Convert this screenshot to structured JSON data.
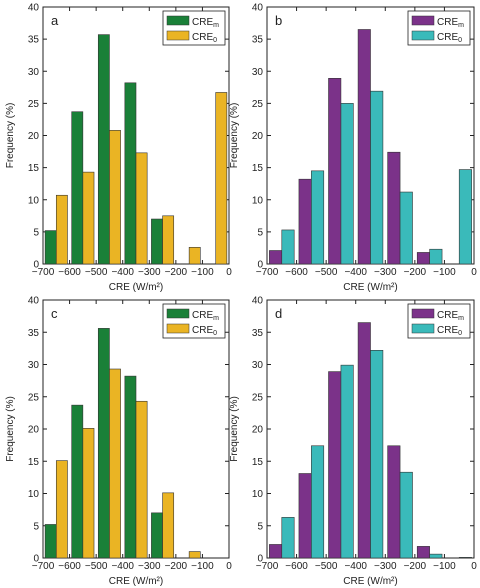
{
  "chart_data": [
    {
      "panel": "a",
      "type": "bar",
      "xlabel": "CRE (W/m²)",
      "ylabel": "Frequency (%)",
      "xlim": [
        -700,
        0
      ],
      "ylim": [
        0,
        40
      ],
      "xticks": [
        -700,
        -600,
        -500,
        -400,
        -300,
        -200,
        -100,
        0
      ],
      "yticks": [
        0,
        5,
        10,
        15,
        20,
        25,
        30,
        35,
        40
      ],
      "legend_position": "top-right",
      "bin_centers": [
        -650,
        -550,
        -450,
        -350,
        -250,
        -150,
        -50
      ],
      "series": [
        {
          "name": "CREm",
          "label_main": "CRE",
          "label_sub": "m",
          "color": "#1a8038",
          "values": [
            5.2,
            23.7,
            35.7,
            28.2,
            7.0,
            0,
            0
          ]
        },
        {
          "name": "CRE0",
          "label_main": "CRE",
          "label_sub": "0",
          "color": "#eab424",
          "values": [
            10.7,
            14.3,
            20.8,
            17.3,
            7.5,
            2.6,
            26.7
          ]
        }
      ]
    },
    {
      "panel": "b",
      "type": "bar",
      "xlabel": "CRE (W/m²)",
      "ylabel": "Frequency (%)",
      "xlim": [
        -700,
        0
      ],
      "ylim": [
        0,
        40
      ],
      "xticks": [
        -700,
        -600,
        -500,
        -400,
        -300,
        -200,
        -100,
        0
      ],
      "yticks": [
        0,
        5,
        10,
        15,
        20,
        25,
        30,
        35,
        40
      ],
      "legend_position": "top-right",
      "bin_centers": [
        -650,
        -550,
        -450,
        -350,
        -250,
        -150,
        -50
      ],
      "series": [
        {
          "name": "CREm",
          "label_main": "CRE",
          "label_sub": "m",
          "color": "#7b3289",
          "values": [
            2.1,
            13.2,
            28.9,
            36.5,
            17.4,
            1.8,
            0
          ]
        },
        {
          "name": "CRE0",
          "label_main": "CRE",
          "label_sub": "0",
          "color": "#3ababa",
          "values": [
            5.3,
            14.5,
            25.0,
            26.9,
            11.2,
            2.3,
            14.7
          ]
        }
      ]
    },
    {
      "panel": "c",
      "type": "bar",
      "xlabel": "CRE (W/m²)",
      "ylabel": "Frequency (%)",
      "xlim": [
        -700,
        0
      ],
      "ylim": [
        0,
        40
      ],
      "xticks": [
        -700,
        -600,
        -500,
        -400,
        -300,
        -200,
        -100,
        0
      ],
      "yticks": [
        0,
        5,
        10,
        15,
        20,
        25,
        30,
        35,
        40
      ],
      "legend_position": "top-right",
      "bin_centers": [
        -650,
        -550,
        -450,
        -350,
        -250,
        -150,
        -50
      ],
      "series": [
        {
          "name": "CREm",
          "label_main": "CRE",
          "label_sub": "m",
          "color": "#1a8038",
          "values": [
            5.2,
            23.7,
            35.6,
            28.2,
            7.0,
            0,
            0
          ]
        },
        {
          "name": "CRE0",
          "label_main": "CRE",
          "label_sub": "0",
          "color": "#eab424",
          "values": [
            15.1,
            20.1,
            29.3,
            24.3,
            10.1,
            1.0,
            0
          ]
        }
      ]
    },
    {
      "panel": "d",
      "type": "bar",
      "xlabel": "CRE (W/m²)",
      "ylabel": "Frequency (%)",
      "xlim": [
        -700,
        0
      ],
      "ylim": [
        0,
        40
      ],
      "xticks": [
        -700,
        -600,
        -500,
        -400,
        -300,
        -200,
        -100,
        0
      ],
      "yticks": [
        0,
        5,
        10,
        15,
        20,
        25,
        30,
        35,
        40
      ],
      "legend_position": "top-right",
      "bin_centers": [
        -650,
        -550,
        -450,
        -350,
        -250,
        -150,
        -50
      ],
      "series": [
        {
          "name": "CREm",
          "label_main": "CRE",
          "label_sub": "m",
          "color": "#7b3289",
          "values": [
            2.1,
            13.1,
            28.9,
            36.5,
            17.4,
            1.8,
            0
          ]
        },
        {
          "name": "CRE0",
          "label_main": "CRE",
          "label_sub": "0",
          "color": "#3ababa",
          "values": [
            6.3,
            17.4,
            29.9,
            32.2,
            13.3,
            0.6,
            0.1
          ]
        }
      ]
    }
  ]
}
